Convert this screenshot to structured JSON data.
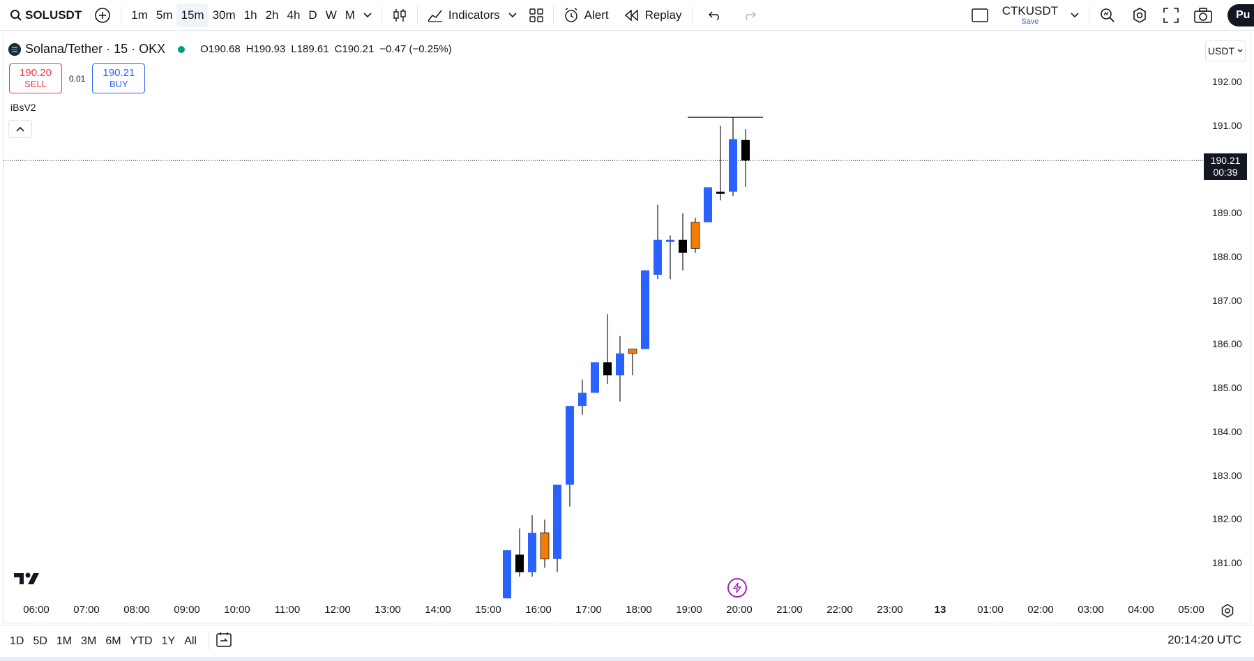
{
  "toolbar": {
    "symbol": "SOLUSDT",
    "intervals": [
      "1m",
      "5m",
      "15m",
      "30m",
      "1h",
      "2h",
      "4h",
      "D",
      "W",
      "M"
    ],
    "active_interval": "15m",
    "indicators_label": "Indicators",
    "alert_label": "Alert",
    "replay_label": "Replay",
    "layout_name": "CTKUSDT",
    "save_label": "Save",
    "publish_label": "Pu"
  },
  "legend": {
    "title": "Solana/Tether · 15 · OKX",
    "open": "O190.68",
    "high": "H190.93",
    "low": "L189.61",
    "close": "C190.21",
    "change": "−0.47 (−0.25%)"
  },
  "trade": {
    "sell_price": "190.20",
    "sell_label": "SELL",
    "spread": "0.01",
    "buy_price": "190.21",
    "buy_label": "BUY"
  },
  "indicator_name": "iBsV2",
  "currency": "USDT",
  "price_axis": [
    "192.00",
    "191.00",
    "189.00",
    "188.00",
    "187.00",
    "186.00",
    "185.00",
    "184.00",
    "183.00",
    "182.00",
    "181.00"
  ],
  "current_price": {
    "value": "190.21",
    "countdown": "00:39"
  },
  "time_axis": [
    "06:00",
    "07:00",
    "08:00",
    "09:00",
    "10:00",
    "11:00",
    "12:00",
    "13:00",
    "14:00",
    "15:00",
    "16:00",
    "17:00",
    "18:00",
    "19:00",
    "20:00",
    "21:00",
    "22:00",
    "23:00",
    "13",
    "01:00",
    "02:00",
    "03:00",
    "04:00",
    "05:00"
  ],
  "ranges": [
    "1D",
    "5D",
    "1M",
    "3M",
    "6M",
    "YTD",
    "1Y",
    "All"
  ],
  "clock": "20:14:20 UTC",
  "colors": {
    "up": "#2962ff",
    "down": "#000000",
    "special": "#f57c00",
    "text": "#131722",
    "border": "#e0e3eb"
  },
  "chart_data": {
    "type": "candlestick",
    "interval_minutes": 15,
    "price_range": [
      180.2,
      192.6
    ],
    "candles": [
      {
        "time": "15:15",
        "o": 180.2,
        "h": 181.3,
        "l": 180.2,
        "c": 181.3,
        "color": "up"
      },
      {
        "time": "15:30",
        "o": 181.2,
        "h": 181.8,
        "l": 180.7,
        "c": 180.8,
        "color": "down"
      },
      {
        "time": "15:45",
        "o": 180.8,
        "h": 182.1,
        "l": 180.7,
        "c": 181.7,
        "color": "up"
      },
      {
        "time": "16:00",
        "o": 181.1,
        "h": 182.0,
        "l": 180.9,
        "c": 181.7,
        "color": "special"
      },
      {
        "time": "16:15",
        "o": 181.1,
        "h": 182.8,
        "l": 180.8,
        "c": 182.8,
        "color": "up"
      },
      {
        "time": "16:30",
        "o": 182.8,
        "h": 184.6,
        "l": 182.3,
        "c": 184.6,
        "color": "up"
      },
      {
        "time": "16:45",
        "o": 184.6,
        "h": 185.2,
        "l": 184.4,
        "c": 184.9,
        "color": "up"
      },
      {
        "time": "17:00",
        "o": 184.9,
        "h": 185.6,
        "l": 184.9,
        "c": 185.6,
        "color": "up"
      },
      {
        "time": "17:15",
        "o": 185.6,
        "h": 186.7,
        "l": 185.1,
        "c": 185.3,
        "color": "down"
      },
      {
        "time": "17:30",
        "o": 185.3,
        "h": 186.2,
        "l": 184.7,
        "c": 185.8,
        "color": "up"
      },
      {
        "time": "17:45",
        "o": 185.8,
        "h": 185.9,
        "l": 185.3,
        "c": 185.9,
        "color": "special"
      },
      {
        "time": "18:00",
        "o": 185.9,
        "h": 187.7,
        "l": 185.9,
        "c": 187.7,
        "color": "up"
      },
      {
        "time": "18:15",
        "o": 187.6,
        "h": 189.2,
        "l": 187.5,
        "c": 188.4,
        "color": "up"
      },
      {
        "time": "18:30",
        "o": 188.4,
        "h": 188.5,
        "l": 187.5,
        "c": 188.4,
        "color": "up"
      },
      {
        "time": "18:45",
        "o": 188.4,
        "h": 189.0,
        "l": 187.7,
        "c": 188.1,
        "color": "down"
      },
      {
        "time": "19:00",
        "o": 188.2,
        "h": 188.9,
        "l": 188.1,
        "c": 188.8,
        "color": "special"
      },
      {
        "time": "19:15",
        "o": 188.8,
        "h": 189.6,
        "l": 188.8,
        "c": 189.6,
        "color": "up"
      },
      {
        "time": "19:30",
        "o": 189.5,
        "h": 191.0,
        "l": 189.3,
        "c": 189.5,
        "color": "down"
      },
      {
        "time": "19:45",
        "o": 189.5,
        "h": 191.2,
        "l": 189.4,
        "c": 190.7,
        "color": "up"
      },
      {
        "time": "20:00",
        "o": 190.68,
        "h": 190.93,
        "l": 189.61,
        "c": 190.21,
        "color": "down"
      }
    ],
    "high_line": 191.2
  }
}
